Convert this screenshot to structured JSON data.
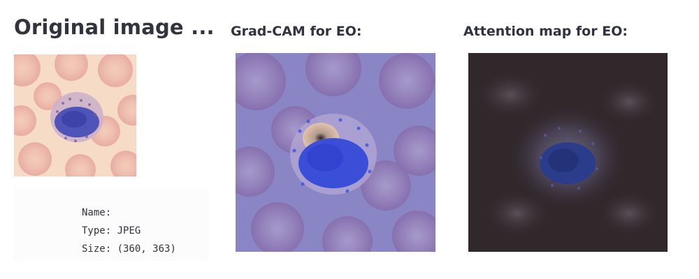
{
  "original": {
    "title": "Original image ...",
    "image_icon": "blood-cell-micrograph"
  },
  "gradcam": {
    "title": "Grad-CAM for EO:",
    "image_icon": "gradcam-heatmap-overlay"
  },
  "attention": {
    "title": "Attention map for EO:",
    "image_icon": "attention-map-overlay"
  },
  "file_info": {
    "name_label": "Name:",
    "name_value": "",
    "type_label": "Type:",
    "type_value": "JPEG",
    "size_label": "Size:",
    "size_value": "(360, 363)"
  },
  "colors": {
    "text": "#31333f",
    "info_bg": "#fcfcfc",
    "original_bg": "#f6d9c4",
    "gradcam_bg": "#8a84c4",
    "attention_bg": "#332a2e"
  }
}
